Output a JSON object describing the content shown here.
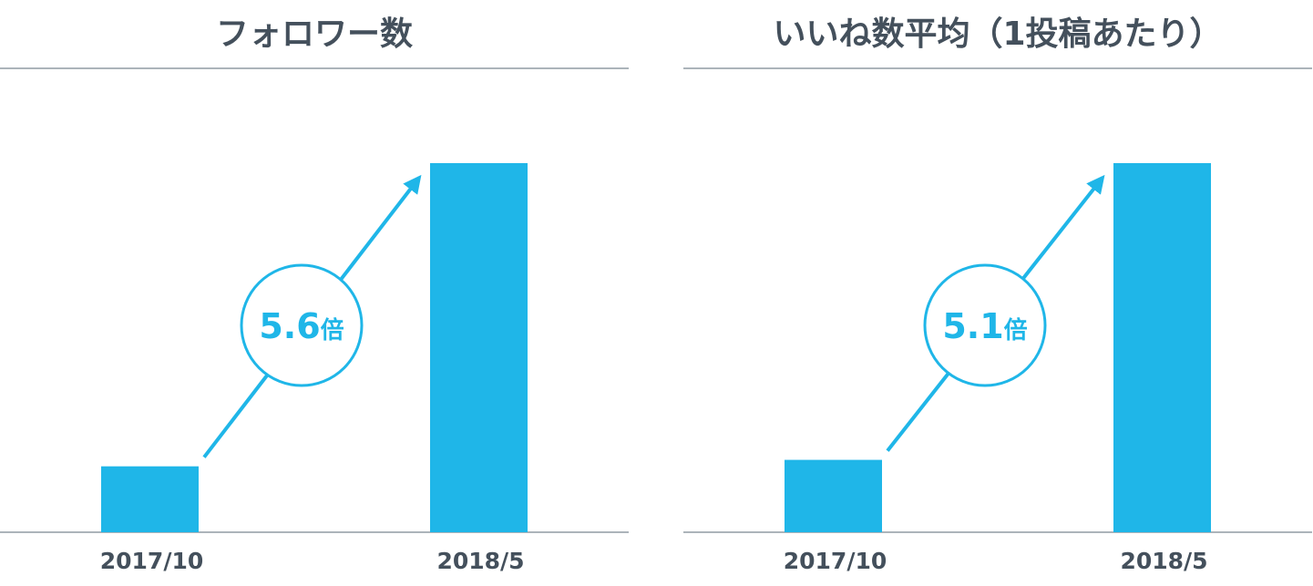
{
  "colors": {
    "bar": "#1fb6e8",
    "text": "#44505c",
    "rule": "#5a6a76"
  },
  "charts": [
    {
      "title": "フォロワー数",
      "callout": {
        "value": "5.6",
        "unit": "倍"
      }
    },
    {
      "title": "いいね数平均（1投稿あたり）",
      "callout": {
        "value": "5.1",
        "unit": "倍"
      }
    }
  ],
  "chart_data": [
    {
      "type": "bar",
      "title": "フォロワー数",
      "categories": [
        "2017/10",
        "2018/5"
      ],
      "values": [
        1,
        5.6
      ],
      "ylim": [
        0,
        5.6
      ],
      "grid": false,
      "annotations": [
        "5.6倍"
      ]
    },
    {
      "type": "bar",
      "title": "いいね数平均（1投稿あたり）",
      "categories": [
        "2017/10",
        "2018/5"
      ],
      "values": [
        1,
        5.1
      ],
      "ylim": [
        0,
        5.1
      ],
      "grid": false,
      "annotations": [
        "5.1倍"
      ]
    }
  ]
}
